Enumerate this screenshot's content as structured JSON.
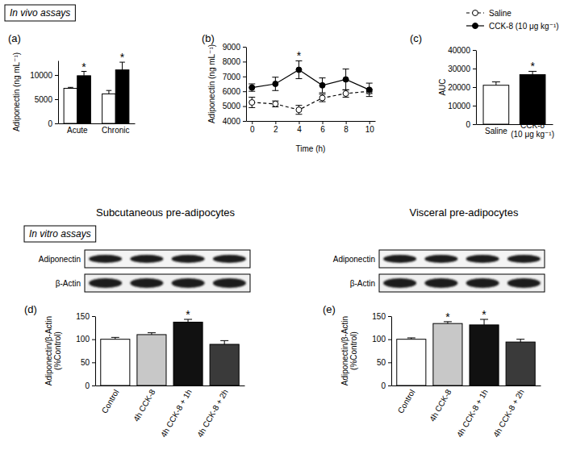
{
  "chart_data": [
    {
      "type": "bar",
      "section": "In vivo assays",
      "title": "(a)",
      "categories": [
        "Acute",
        "Chronic"
      ],
      "series": [
        {
          "color": "#ffffff",
          "values": [
            7250,
            6100
          ],
          "errors": [
            200,
            700
          ]
        },
        {
          "color": "#000000",
          "values": [
            9850,
            11050
          ],
          "errors": [
            900,
            1600
          ],
          "annotations": [
            "*",
            "*"
          ]
        }
      ],
      "ylabel": "Adiponectin (ng mL⁻¹)",
      "ylim": [
        0,
        13000
      ],
      "yticks": [
        0,
        5000,
        10000
      ]
    },
    {
      "type": "line",
      "title": "(b)",
      "x": [
        0,
        2,
        4,
        6,
        8,
        10
      ],
      "xlim": [
        -0.5,
        10.5
      ],
      "xticks": [
        0,
        2,
        4,
        6,
        8,
        10
      ],
      "xlabel": "Time (h)",
      "ylabel": "Adiponectin (ng mL⁻¹)",
      "ylim": [
        4000,
        9000
      ],
      "yticks": [
        4000,
        5000,
        6000,
        7000,
        8000,
        9000
      ],
      "legend": "top-right",
      "series": [
        {
          "name": "Saline",
          "color": "#000000",
          "marker": "open-circle",
          "line_style": "dashed",
          "values": [
            5250,
            5150,
            4750,
            5550,
            5850,
            6000
          ],
          "errors": [
            350,
            200,
            300,
            250,
            250,
            150
          ]
        },
        {
          "name": "CCK-8 (10 μg kg⁻¹)",
          "color": "#000000",
          "marker": "circle",
          "line_style": "solid",
          "values": [
            6250,
            6500,
            7450,
            6400,
            6800,
            6100
          ],
          "errors": [
            250,
            450,
            600,
            500,
            700,
            450
          ],
          "annotations": [
            null,
            null,
            "*",
            null,
            null,
            null
          ]
        }
      ]
    },
    {
      "type": "bar",
      "title": "(c)",
      "categories": [
        "Saline",
        "CCK-8\n(10 μg kg⁻¹)"
      ],
      "values": [
        21000,
        26700
      ],
      "errors": [
        1800,
        1800
      ],
      "colors": [
        "#ffffff",
        "#000000"
      ],
      "annotations": [
        null,
        "*"
      ],
      "ylabel": "AUC",
      "ylim": [
        0,
        40000
      ],
      "yticks": [
        0,
        10000,
        20000,
        30000,
        40000
      ]
    },
    {
      "type": "bar",
      "title": "(d)",
      "subtitle": "Subcutaneous pre-adipocytes",
      "section": "In vitro assays",
      "blot_labels": [
        "Adiponectin",
        "β-Actin"
      ],
      "categories": [
        "Control",
        "4h CCK-8",
        "4h CCK-8 + 1h",
        "4h CCK-8 + 2h"
      ],
      "values": [
        100,
        110,
        137,
        89
      ],
      "errors": [
        4,
        4,
        6,
        8
      ],
      "colors": [
        "#ffffff",
        "#c8c8c8",
        "#111111",
        "#3a3a3a"
      ],
      "annotations": [
        null,
        null,
        "*",
        null
      ],
      "ylabel": "Adiponectin/β-Actin\n(%Control)",
      "ylim": [
        0,
        150
      ],
      "yticks": [
        0,
        50,
        100,
        150
      ]
    },
    {
      "type": "bar",
      "title": "(e)",
      "subtitle": "Visceral pre-adipocytes",
      "blot_labels": [
        "Adiponectin",
        "β-Actin"
      ],
      "categories": [
        "Control",
        "4h CCK-8",
        "4h CCK-8 + 1h",
        "4h CCK-8 + 2h"
      ],
      "values": [
        100,
        134,
        131,
        94
      ],
      "errors": [
        3,
        4,
        12,
        6
      ],
      "colors": [
        "#ffffff",
        "#c8c8c8",
        "#111111",
        "#3a3a3a"
      ],
      "annotations": [
        null,
        "*",
        "*",
        null
      ],
      "ylabel": "Adiponectin/β-Actin\n(%Control)",
      "ylim": [
        0,
        150
      ],
      "yticks": [
        0,
        50,
        100,
        150
      ]
    }
  ]
}
